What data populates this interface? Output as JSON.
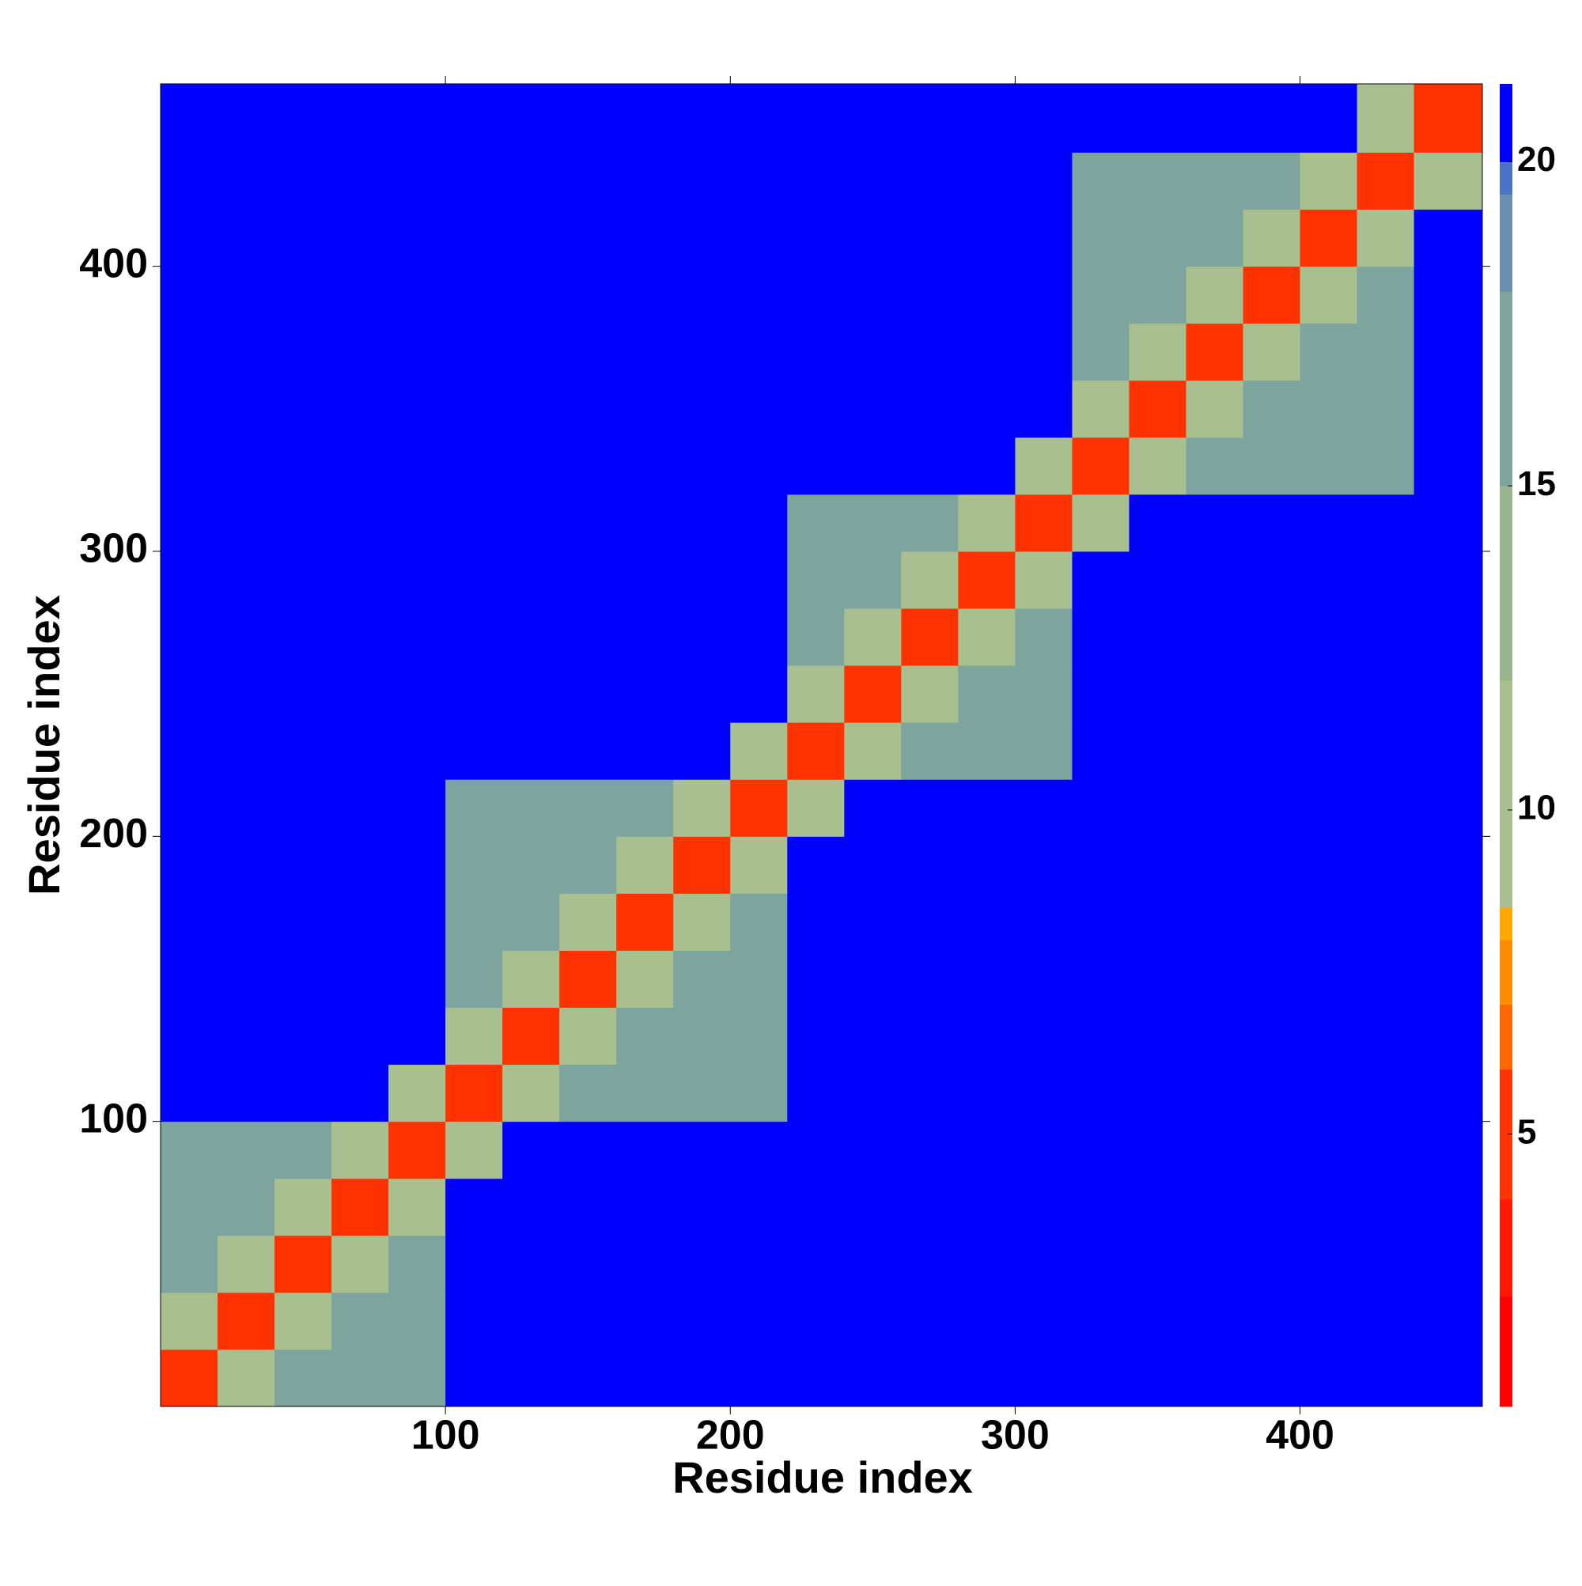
{
  "chart_data": {
    "type": "heatmap",
    "xlabel": "Residue index",
    "ylabel": "Residue index",
    "x_edges": [
      0,
      20,
      40,
      60,
      80,
      100,
      120,
      140,
      160,
      180,
      200,
      220,
      240,
      260,
      280,
      300,
      320,
      340,
      360,
      380,
      400,
      420,
      440,
      464
    ],
    "y_edges": [
      0,
      20,
      40,
      60,
      80,
      100,
      120,
      140,
      160,
      180,
      200,
      220,
      240,
      260,
      280,
      300,
      320,
      340,
      360,
      380,
      400,
      420,
      440,
      464
    ],
    "z": [
      [
        4,
        10,
        15,
        15,
        15,
        21,
        21,
        21,
        21,
        21,
        21,
        21,
        21,
        21,
        21,
        21,
        21,
        21,
        21,
        21,
        21,
        21,
        21
      ],
      [
        10,
        4,
        10,
        15,
        15,
        21,
        21,
        21,
        21,
        21,
        21,
        21,
        21,
        21,
        21,
        21,
        21,
        21,
        21,
        21,
        21,
        21,
        21
      ],
      [
        15,
        10,
        4,
        10,
        15,
        21,
        21,
        21,
        21,
        21,
        21,
        21,
        21,
        21,
        21,
        21,
        21,
        21,
        21,
        21,
        21,
        21,
        21
      ],
      [
        15,
        15,
        10,
        4,
        10,
        21,
        21,
        21,
        21,
        21,
        21,
        21,
        21,
        21,
        21,
        21,
        21,
        21,
        21,
        21,
        21,
        21,
        21
      ],
      [
        15,
        15,
        15,
        10,
        4,
        10,
        21,
        21,
        21,
        21,
        21,
        21,
        21,
        21,
        21,
        21,
        21,
        21,
        21,
        21,
        21,
        21,
        21
      ],
      [
        21,
        21,
        21,
        21,
        10,
        4,
        10,
        15,
        15,
        15,
        15,
        21,
        21,
        21,
        21,
        21,
        21,
        21,
        21,
        21,
        21,
        21,
        21
      ],
      [
        21,
        21,
        21,
        21,
        21,
        10,
        4,
        10,
        15,
        15,
        15,
        21,
        21,
        21,
        21,
        21,
        21,
        21,
        21,
        21,
        21,
        21,
        21
      ],
      [
        21,
        21,
        21,
        21,
        21,
        15,
        10,
        4,
        10,
        15,
        15,
        21,
        21,
        21,
        21,
        21,
        21,
        21,
        21,
        21,
        21,
        21,
        21
      ],
      [
        21,
        21,
        21,
        21,
        21,
        15,
        15,
        10,
        4,
        10,
        15,
        21,
        21,
        21,
        21,
        21,
        21,
        21,
        21,
        21,
        21,
        21,
        21
      ],
      [
        21,
        21,
        21,
        21,
        21,
        15,
        15,
        15,
        10,
        4,
        10,
        21,
        21,
        21,
        21,
        21,
        21,
        21,
        21,
        21,
        21,
        21,
        21
      ],
      [
        21,
        21,
        21,
        21,
        21,
        15,
        15,
        15,
        15,
        10,
        4,
        10,
        21,
        21,
        21,
        21,
        21,
        21,
        21,
        21,
        21,
        21,
        21
      ],
      [
        21,
        21,
        21,
        21,
        21,
        21,
        21,
        21,
        21,
        21,
        10,
        4,
        10,
        15,
        15,
        15,
        21,
        21,
        21,
        21,
        21,
        21,
        21
      ],
      [
        21,
        21,
        21,
        21,
        21,
        21,
        21,
        21,
        21,
        21,
        21,
        10,
        4,
        10,
        15,
        15,
        21,
        21,
        21,
        21,
        21,
        21,
        21
      ],
      [
        21,
        21,
        21,
        21,
        21,
        21,
        21,
        21,
        21,
        21,
        21,
        15,
        10,
        4,
        10,
        15,
        21,
        21,
        21,
        21,
        21,
        21,
        21
      ],
      [
        21,
        21,
        21,
        21,
        21,
        21,
        21,
        21,
        21,
        21,
        21,
        15,
        15,
        10,
        4,
        10,
        21,
        21,
        21,
        21,
        21,
        21,
        21
      ],
      [
        21,
        21,
        21,
        21,
        21,
        21,
        21,
        21,
        21,
        21,
        21,
        15,
        15,
        15,
        10,
        4,
        10,
        21,
        21,
        21,
        21,
        21,
        21
      ],
      [
        21,
        21,
        21,
        21,
        21,
        21,
        21,
        21,
        21,
        21,
        21,
        21,
        21,
        21,
        21,
        10,
        4,
        10,
        15,
        15,
        15,
        15,
        21
      ],
      [
        21,
        21,
        21,
        21,
        21,
        21,
        21,
        21,
        21,
        21,
        21,
        21,
        21,
        21,
        21,
        21,
        10,
        4,
        10,
        15,
        15,
        15,
        21
      ],
      [
        21,
        21,
        21,
        21,
        21,
        21,
        21,
        21,
        21,
        21,
        21,
        21,
        21,
        21,
        21,
        21,
        15,
        10,
        4,
        10,
        15,
        15,
        21
      ],
      [
        21,
        21,
        21,
        21,
        21,
        21,
        21,
        21,
        21,
        21,
        21,
        21,
        21,
        21,
        21,
        21,
        15,
        15,
        10,
        4,
        10,
        15,
        21
      ],
      [
        21,
        21,
        21,
        21,
        21,
        21,
        21,
        21,
        21,
        21,
        21,
        21,
        21,
        21,
        21,
        21,
        15,
        15,
        15,
        10,
        4,
        10,
        21
      ],
      [
        21,
        21,
        21,
        21,
        21,
        21,
        21,
        21,
        21,
        21,
        21,
        21,
        21,
        21,
        21,
        21,
        15,
        15,
        15,
        15,
        10,
        4,
        10
      ],
      [
        21,
        21,
        21,
        21,
        21,
        21,
        21,
        21,
        21,
        21,
        21,
        21,
        21,
        21,
        21,
        21,
        21,
        21,
        21,
        21,
        21,
        10,
        4
      ]
    ],
    "xlim": [
      0,
      464
    ],
    "ylim": [
      0,
      464
    ],
    "xticks": [
      100,
      200,
      300,
      400
    ],
    "yticks": [
      100,
      200,
      300,
      400
    ],
    "clim": [
      0.8,
      21.2
    ],
    "cticks": [
      5,
      10,
      15,
      20
    ],
    "colorscale": [
      [
        0.8,
        "#ff0000"
      ],
      [
        2.5,
        "#ff1a00"
      ],
      [
        4,
        "#ff3300"
      ],
      [
        6,
        "#ff6600"
      ],
      [
        7,
        "#ff8c00"
      ],
      [
        8,
        "#ffaa00"
      ],
      [
        8.5,
        "#a8c090"
      ],
      [
        12,
        "#98b68e"
      ],
      [
        15,
        "#7ea49e"
      ],
      [
        18,
        "#6690ac"
      ],
      [
        19.5,
        "#4a74c6"
      ],
      [
        20,
        "#0000ff"
      ]
    ]
  }
}
